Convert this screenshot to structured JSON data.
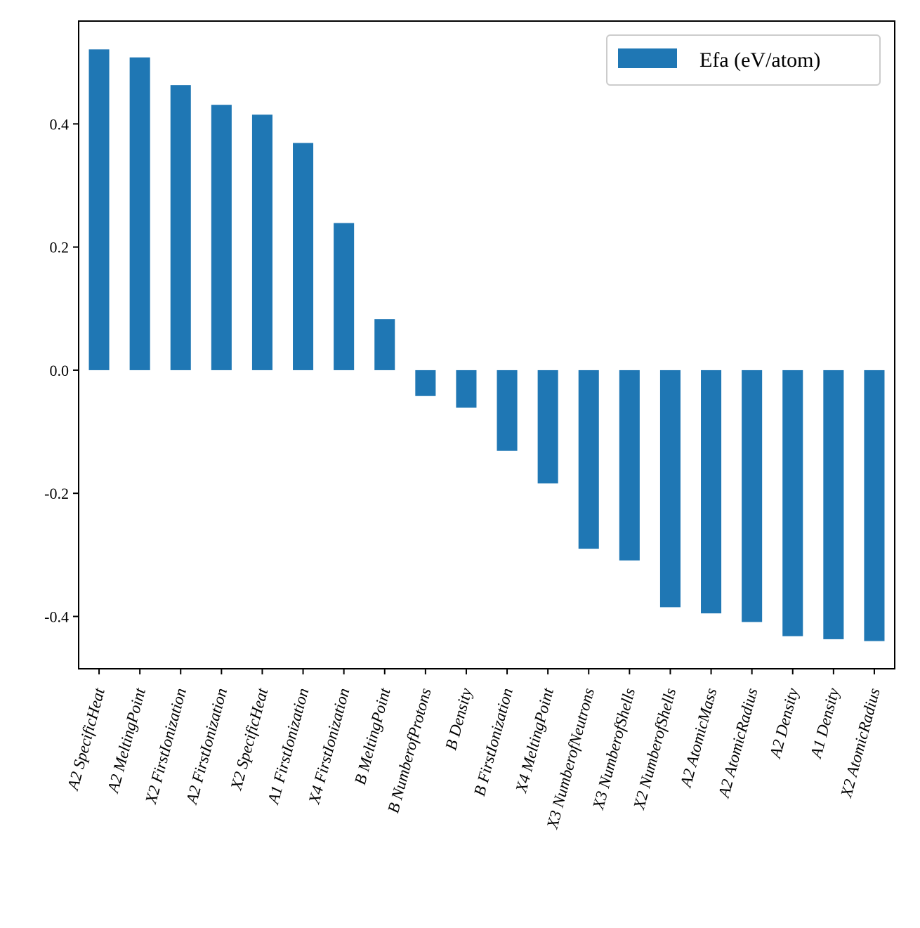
{
  "chart_data": {
    "type": "bar",
    "categories": [
      "A2 SpecificHeat",
      "A2 MeltingPoint",
      "X2 FirstIonization",
      "A2 FirstIonization",
      "X2 SpecificHeat",
      "A1 FirstIonization",
      "X4 FirstIonization",
      "B MeltingPoint",
      "B NumberofProtons",
      "B Density",
      "B FirstIonization",
      "X4 MeltingPoint",
      "X3 NumberofNeutrons",
      "X3 NumberofShells",
      "X2 NumberofShells",
      "A2 AtomicMass",
      "A2 AtomicRadius",
      "A2 Density",
      "A1 Density",
      "X2 AtomicRadius"
    ],
    "series": [
      {
        "name": "Efa (eV/atom)",
        "color": "#1f77b4",
        "values": [
          0.521,
          0.508,
          0.463,
          0.431,
          0.415,
          0.369,
          0.239,
          0.083,
          -0.042,
          -0.061,
          -0.131,
          -0.184,
          -0.29,
          -0.309,
          -0.385,
          -0.395,
          -0.409,
          -0.432,
          -0.437,
          -0.44
        ]
      }
    ],
    "yticks": [
      -0.4,
      -0.2,
      0.0,
      0.2,
      0.4
    ],
    "ytick_labels": [
      "-0.4",
      "-0.2",
      "0.0",
      "0.2",
      "0.4"
    ],
    "ylim": [
      -0.485,
      0.567
    ],
    "legend_position": "top-right",
    "grid": false
  }
}
